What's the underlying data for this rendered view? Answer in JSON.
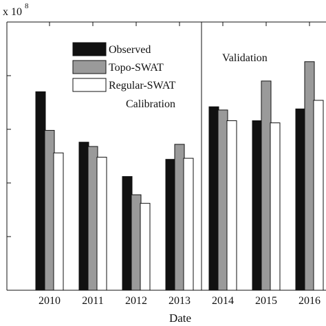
{
  "chart_data": {
    "type": "bar",
    "categories": [
      "2010",
      "2011",
      "2012",
      "2013",
      "2014",
      "2015",
      "2016"
    ],
    "series": [
      {
        "name": "Observed",
        "values": [
          1.85,
          1.38,
          1.06,
          1.22,
          1.71,
          1.58,
          1.69
        ],
        "color": "#111111"
      },
      {
        "name": "Topo-SWAT",
        "values": [
          1.49,
          1.34,
          0.89,
          1.36,
          1.68,
          1.95,
          2.13
        ],
        "color": "#9a9a9a"
      },
      {
        "name": "Regular-SWAT",
        "values": [
          1.28,
          1.24,
          0.81,
          1.23,
          1.58,
          1.56,
          1.77
        ],
        "color": "#ffffff"
      }
    ],
    "scale_label": "x 10",
    "scale_exponent": "8",
    "xlabel": "Date",
    "ylabel": "",
    "ylim": [
      0,
      2.5
    ],
    "y_ticks": [
      0,
      0.5,
      1,
      1.5,
      2,
      2.5
    ],
    "grid": false,
    "legend_position": "top-left",
    "annotations": {
      "calibration": "Calibration",
      "validation": "Validation"
    },
    "divider_between": [
      "2013",
      "2014"
    ]
  }
}
